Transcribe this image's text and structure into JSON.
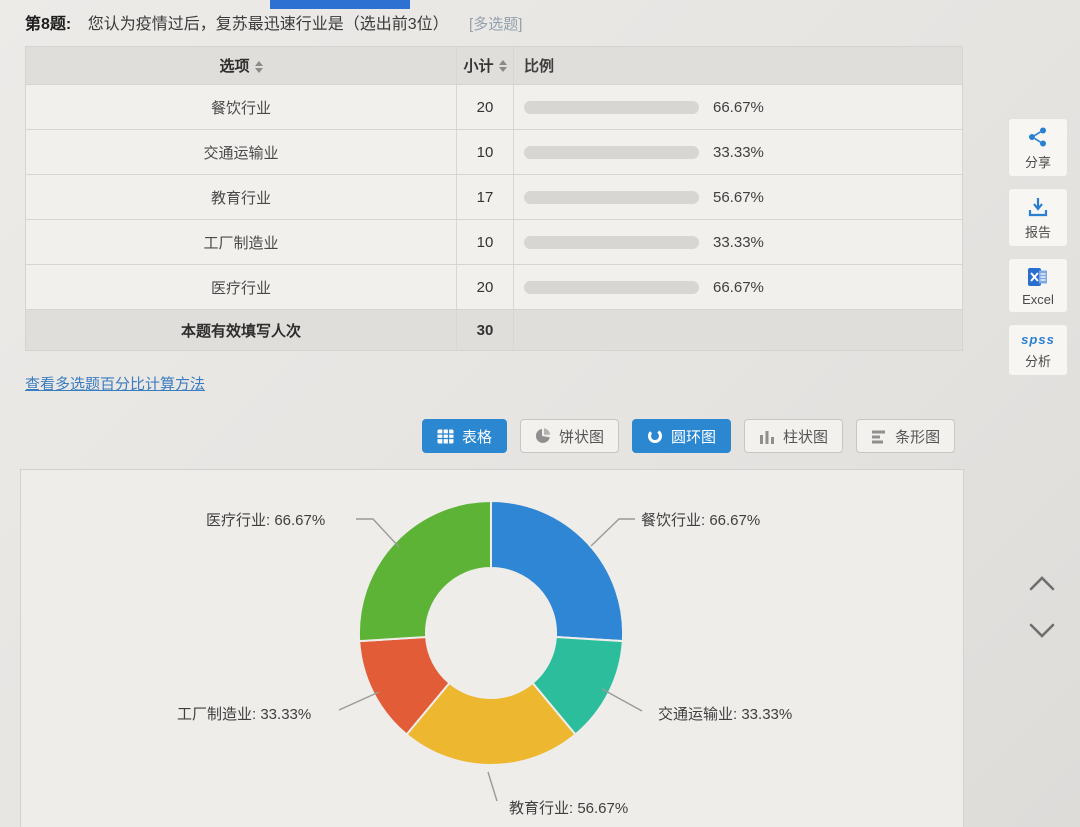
{
  "question": {
    "number": "第8题:",
    "text": "您认为疫情过后，复苏最迅速行业是（选出前3位）",
    "tag": "[多选题]"
  },
  "table": {
    "col_option": "选项",
    "col_count": "小计",
    "col_ratio": "比例",
    "rows": [
      {
        "option": "餐饮行业",
        "count": "20",
        "percent_text": "66.67%",
        "percent": 66.67
      },
      {
        "option": "交通运输业",
        "count": "10",
        "percent_text": "33.33%",
        "percent": 33.33
      },
      {
        "option": "教育行业",
        "count": "17",
        "percent_text": "56.67%",
        "percent": 56.67
      },
      {
        "option": "工厂制造业",
        "count": "10",
        "percent_text": "33.33%",
        "percent": 33.33
      },
      {
        "option": "医疗行业",
        "count": "20",
        "percent_text": "66.67%",
        "percent": 66.67
      }
    ],
    "footer_label": "本题有效填写人次",
    "footer_count": "30"
  },
  "link_text": "查看多选题百分比计算方法",
  "tabs": [
    {
      "label": "表格",
      "icon": "table-icon",
      "active": true
    },
    {
      "label": "饼状图",
      "icon": "pie-chart-icon",
      "active": false
    },
    {
      "label": "圆环图",
      "icon": "donut-chart-icon",
      "active": true
    },
    {
      "label": "柱状图",
      "icon": "column-chart-icon",
      "active": false
    },
    {
      "label": "条形图",
      "icon": "bar-chart-icon",
      "active": false
    }
  ],
  "toolbar": {
    "share": "分享",
    "report": "报告",
    "excel": "Excel",
    "spss": "spss",
    "analyze": "分析"
  },
  "chart_data": {
    "type": "pie",
    "subtype": "donut",
    "title": "",
    "categories": [
      "餐饮行业",
      "交通运输业",
      "教育行业",
      "工厂制造业",
      "医疗行业"
    ],
    "values": [
      20,
      10,
      17,
      10,
      20
    ],
    "percents": [
      66.67,
      33.33,
      56.67,
      33.33,
      66.67
    ],
    "percent_labels": [
      "餐饮行业: 66.67%",
      "交通运输业: 33.33%",
      "教育行业: 56.67%",
      "工厂制造业: 33.33%",
      "医疗行业: 66.67%"
    ],
    "colors": [
      "#2e86d5",
      "#2cbd9d",
      "#edb82f",
      "#e25c38",
      "#5cb335"
    ],
    "start_angle_deg": 0,
    "clockwise": true,
    "inner_radius_ratio": 0.49,
    "legend_position": "callout-labels",
    "respondents": 30
  },
  "accents": {
    "primary_blue": "#2b87cf",
    "bar_fill": "#2f8ed8",
    "bar_track": "#d8d6d3",
    "link_blue": "#3a7cc0",
    "top_strip_blue": "#2d72d2"
  }
}
